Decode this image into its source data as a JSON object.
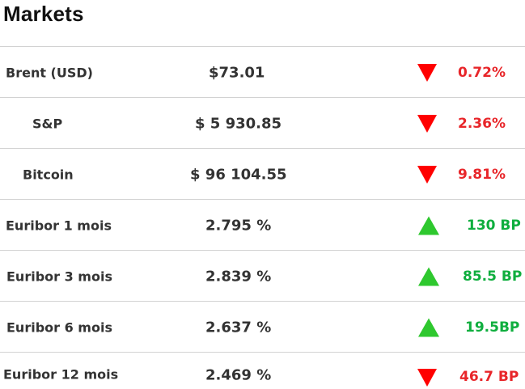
{
  "title": "Markets",
  "rows": [
    {
      "name": "Brent (USD)",
      "value": "$73.01",
      "direction": "down",
      "change": "0.72%"
    },
    {
      "name": "S&P",
      "value": "$ 5 930.85",
      "direction": "down",
      "change": "2.36%"
    },
    {
      "name": "Bitcoin",
      "value": "$ 96 104.55",
      "direction": "down",
      "change": "9.81%"
    },
    {
      "name": "Euribor 1 mois",
      "value": "2.795 %",
      "direction": "up",
      "change": "130 BP"
    },
    {
      "name": "Euribor 3 mois",
      "value": "2.839 %",
      "direction": "up",
      "change": "85.5 BP"
    },
    {
      "name": "Euribor 6 mois",
      "value": "2.637 %",
      "direction": "up",
      "change": "19.5BP"
    },
    {
      "name": "Euribor 12 mois",
      "value": "2.469 %",
      "direction": "down",
      "change": "46.7 BP"
    }
  ],
  "colors": {
    "down": "#ff0000",
    "up": "#2ec82e",
    "negative_text": "#e8262a",
    "positive_text": "#0fae3e"
  }
}
